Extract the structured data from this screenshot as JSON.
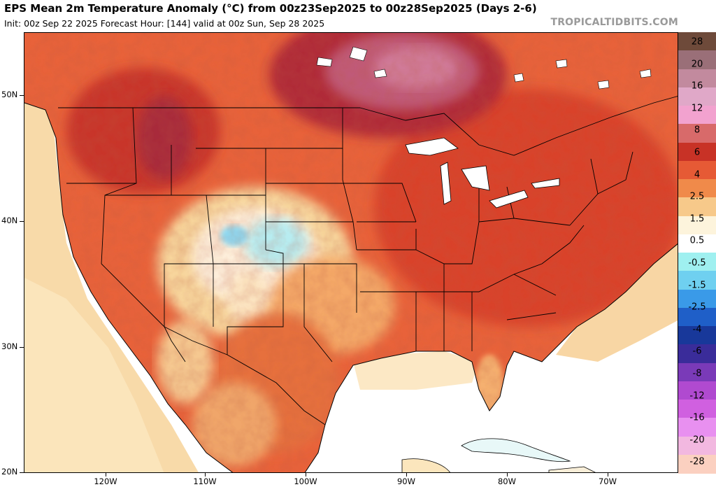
{
  "header": {
    "title": "EPS Mean 2m Temperature Anomaly (°C) from 00z23Sep2025 to 00z28Sep2025 (Days 2-6)",
    "subtitle": "Init: 00z Sep 22 2025   Forecast Hour: [144]   valid at 00z Sun, Sep 28 2025",
    "brand": "TROPICALTIDBITS.COM"
  },
  "map": {
    "lat_labels": [
      "50N",
      "40N",
      "30N",
      "20N"
    ],
    "lon_labels": [
      "120W",
      "110W",
      "100W",
      "90W",
      "80W",
      "70W"
    ],
    "ocean_color": "#ffffff"
  },
  "colorbar": {
    "levels": [
      "28",
      "20",
      "16",
      "12",
      "8",
      "6",
      "4",
      "2.5",
      "1.5",
      "0.5",
      "-0.5",
      "-1.5",
      "-2.5",
      "-4",
      "-6",
      "-8",
      "-12",
      "-16",
      "-20",
      "-28"
    ],
    "colors": [
      "#6e4a3a",
      "#9a6f78",
      "#c28a9e",
      "#e0a8c8",
      "#f2a2cf",
      "#d86a6a",
      "#c83226",
      "#e65a35",
      "#f08a4a",
      "#f7c98a",
      "#fdf4dc",
      "#ffffff",
      "#9ff0f0",
      "#6fd0f0",
      "#3a9ae8",
      "#1f5fc8",
      "#18389a",
      "#3a2c9a",
      "#7a3ab8",
      "#b04ad0",
      "#d060e0",
      "#e890f0",
      "#f2b8e0",
      "#fbd0c0"
    ]
  }
}
